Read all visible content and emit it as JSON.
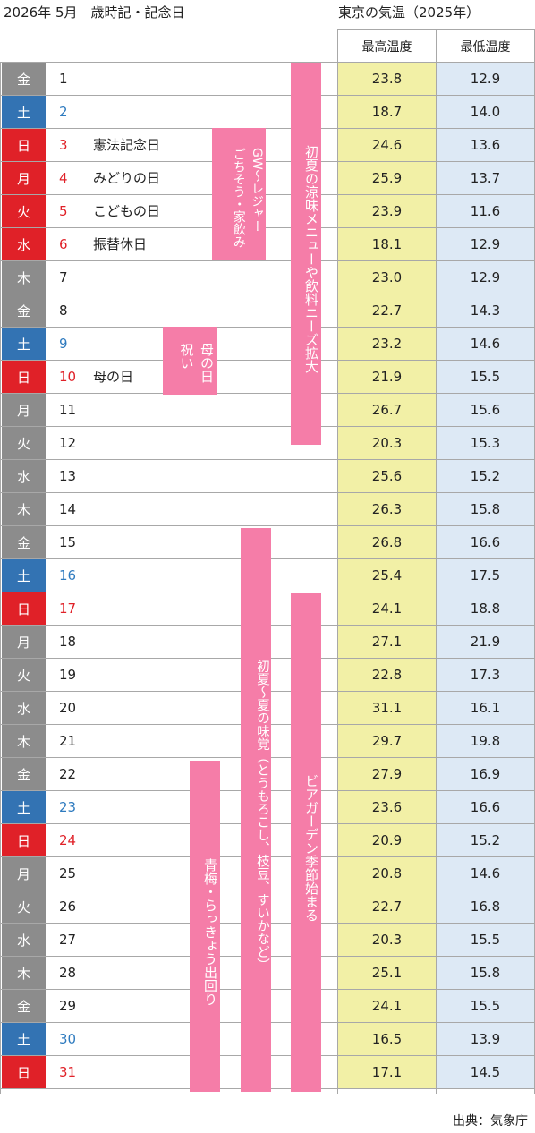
{
  "header": {
    "left_title": "2026年 5月　歳時記・記念日",
    "right_title": "東京の気温（2025年）",
    "col_high": "最高温度",
    "col_low": "最低温度"
  },
  "rows": [
    {
      "dow": "金",
      "day": "1",
      "event": "",
      "high": "23.8",
      "low": "12.9",
      "dow_color": "gray",
      "num_color": "black"
    },
    {
      "dow": "土",
      "day": "2",
      "event": "",
      "high": "18.7",
      "low": "14.0",
      "dow_color": "blue",
      "num_color": "blue"
    },
    {
      "dow": "日",
      "day": "3",
      "event": "憲法記念日",
      "high": "24.6",
      "low": "13.6",
      "dow_color": "red",
      "num_color": "red"
    },
    {
      "dow": "月",
      "day": "4",
      "event": "みどりの日",
      "high": "25.9",
      "low": "13.7",
      "dow_color": "red",
      "num_color": "red"
    },
    {
      "dow": "火",
      "day": "5",
      "event": "こどもの日",
      "high": "23.9",
      "low": "11.6",
      "dow_color": "red",
      "num_color": "red"
    },
    {
      "dow": "水",
      "day": "6",
      "event": "振替休日",
      "high": "18.1",
      "low": "12.9",
      "dow_color": "red",
      "num_color": "red"
    },
    {
      "dow": "木",
      "day": "7",
      "event": "",
      "high": "23.0",
      "low": "12.9",
      "dow_color": "gray",
      "num_color": "black"
    },
    {
      "dow": "金",
      "day": "8",
      "event": "",
      "high": "22.7",
      "low": "14.3",
      "dow_color": "gray",
      "num_color": "black"
    },
    {
      "dow": "土",
      "day": "9",
      "event": "",
      "high": "23.2",
      "low": "14.6",
      "dow_color": "blue",
      "num_color": "blue"
    },
    {
      "dow": "日",
      "day": "10",
      "event": "母の日",
      "high": "21.9",
      "low": "15.5",
      "dow_color": "red",
      "num_color": "red"
    },
    {
      "dow": "月",
      "day": "11",
      "event": "",
      "high": "26.7",
      "low": "15.6",
      "dow_color": "gray",
      "num_color": "black"
    },
    {
      "dow": "火",
      "day": "12",
      "event": "",
      "high": "20.3",
      "low": "15.3",
      "dow_color": "gray",
      "num_color": "black"
    },
    {
      "dow": "水",
      "day": "13",
      "event": "",
      "high": "25.6",
      "low": "15.2",
      "dow_color": "gray",
      "num_color": "black"
    },
    {
      "dow": "木",
      "day": "14",
      "event": "",
      "high": "26.3",
      "low": "15.8",
      "dow_color": "gray",
      "num_color": "black"
    },
    {
      "dow": "金",
      "day": "15",
      "event": "",
      "high": "26.8",
      "low": "16.6",
      "dow_color": "gray",
      "num_color": "black"
    },
    {
      "dow": "土",
      "day": "16",
      "event": "",
      "high": "25.4",
      "low": "17.5",
      "dow_color": "blue",
      "num_color": "blue"
    },
    {
      "dow": "日",
      "day": "17",
      "event": "",
      "high": "24.1",
      "low": "18.8",
      "dow_color": "red",
      "num_color": "red"
    },
    {
      "dow": "月",
      "day": "18",
      "event": "",
      "high": "27.1",
      "low": "21.9",
      "dow_color": "gray",
      "num_color": "black"
    },
    {
      "dow": "火",
      "day": "19",
      "event": "",
      "high": "22.8",
      "low": "17.3",
      "dow_color": "gray",
      "num_color": "black"
    },
    {
      "dow": "水",
      "day": "20",
      "event": "",
      "high": "31.1",
      "low": "16.1",
      "dow_color": "gray",
      "num_color": "black"
    },
    {
      "dow": "木",
      "day": "21",
      "event": "",
      "high": "29.7",
      "low": "19.8",
      "dow_color": "gray",
      "num_color": "black"
    },
    {
      "dow": "金",
      "day": "22",
      "event": "",
      "high": "27.9",
      "low": "16.9",
      "dow_color": "gray",
      "num_color": "black"
    },
    {
      "dow": "土",
      "day": "23",
      "event": "",
      "high": "23.6",
      "low": "16.6",
      "dow_color": "blue",
      "num_color": "blue"
    },
    {
      "dow": "日",
      "day": "24",
      "event": "",
      "high": "20.9",
      "low": "15.2",
      "dow_color": "red",
      "num_color": "red"
    },
    {
      "dow": "月",
      "day": "25",
      "event": "",
      "high": "20.8",
      "low": "14.6",
      "dow_color": "gray",
      "num_color": "black"
    },
    {
      "dow": "火",
      "day": "26",
      "event": "",
      "high": "22.7",
      "low": "16.8",
      "dow_color": "gray",
      "num_color": "black"
    },
    {
      "dow": "水",
      "day": "27",
      "event": "",
      "high": "20.3",
      "low": "15.5",
      "dow_color": "gray",
      "num_color": "black"
    },
    {
      "dow": "木",
      "day": "28",
      "event": "",
      "high": "25.1",
      "low": "15.8",
      "dow_color": "gray",
      "num_color": "black"
    },
    {
      "dow": "金",
      "day": "29",
      "event": "",
      "high": "24.1",
      "low": "15.5",
      "dow_color": "gray",
      "num_color": "black"
    },
    {
      "dow": "土",
      "day": "30",
      "event": "",
      "high": "16.5",
      "low": "13.9",
      "dow_color": "blue",
      "num_color": "blue"
    },
    {
      "dow": "日",
      "day": "31",
      "event": "",
      "high": "17.1",
      "low": "14.5",
      "dow_color": "red",
      "num_color": "red"
    }
  ],
  "bands": {
    "gw": "GW～レジャー\nごちそう・家飲み",
    "mothers_day": "母の日\n祝い",
    "early_summer_cool": "初夏の涼味メニューや飲料ニーズ拡大",
    "early_summer_taste": "初夏～夏の味覚（とうもろこし、枝豆、すいかなど）",
    "beer_garden": "ビアガーデン季節始まる",
    "ume_rakkyo": "青梅・らっきょう出回り"
  },
  "colors": {
    "saturday": "#3373b3",
    "sunday_holiday": "#e02128",
    "weekday": "#8c8c8c",
    "band_pink": "#f57da8",
    "high_col_bg": "#f2f0a6",
    "low_col_bg": "#dde9f5"
  },
  "footer": {
    "source": "出典：気象庁"
  }
}
